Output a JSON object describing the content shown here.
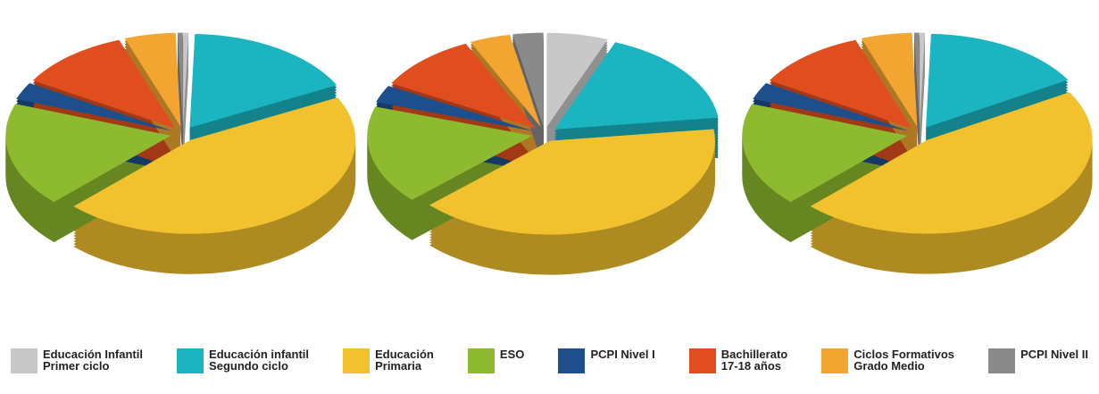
{
  "categories": [
    "Educación Infantil\nPrimer ciclo",
    "Educación infantil\nSegundo ciclo",
    "Educación\nPrimaria",
    "ESO",
    "PCPI Nivel I",
    "Bachillerato\n17-18 años",
    "Ciclos Formativos\nGrado Medio",
    "PCPI Nivel II"
  ],
  "colors": [
    "#c8c8c8",
    "#1ab5c0",
    "#f2c12e",
    "#8dba2f",
    "#1d4f8c",
    "#e04e1f",
    "#f2a531",
    "#8a8a8a"
  ],
  "chart_data": [
    {
      "type": "pie",
      "values": [
        0.5,
        17,
        45,
        18,
        3,
        11,
        5,
        0.5
      ]
    },
    {
      "type": "pie",
      "values": [
        6,
        17,
        40,
        17,
        3,
        10,
        4,
        3
      ]
    },
    {
      "type": "pie",
      "values": [
        0.5,
        16,
        46,
        18,
        3,
        11,
        5,
        0.5
      ]
    }
  ]
}
